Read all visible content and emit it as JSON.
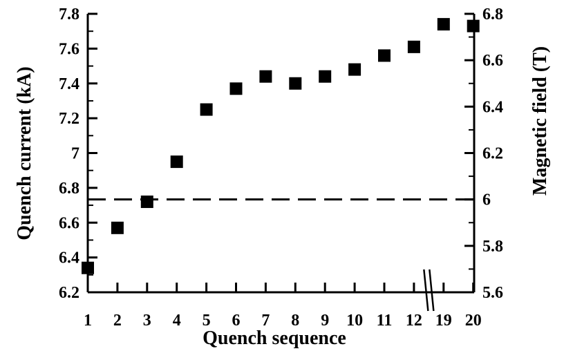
{
  "chart_data": {
    "type": "scatter",
    "title": "",
    "xlabel": "Quench sequence",
    "ylabel": "Quench current (kA)",
    "y2label": "Magnetic field (T)",
    "x_categories": [
      "1",
      "2",
      "3",
      "4",
      "5",
      "6",
      "7",
      "8",
      "9",
      "10",
      "11",
      "12",
      "19",
      "20"
    ],
    "x_axis_break": "between 12 and 19",
    "ylim": [
      6.2,
      7.8
    ],
    "y_ticks": [
      "6.2",
      "6.4",
      "6.6",
      "6.8",
      "7",
      "7.2",
      "7.4",
      "7.6",
      "7.8"
    ],
    "y2lim": [
      5.6,
      6.8
    ],
    "y2_ticks": [
      "5.6",
      "5.8",
      "6",
      "6.2",
      "6.4",
      "6.6",
      "6.8"
    ],
    "series": [
      {
        "marker": "filled-square",
        "color": "#000000",
        "x": [
          "1",
          "2",
          "3",
          "4",
          "5",
          "6",
          "7",
          "8",
          "9",
          "10",
          "11",
          "12",
          "19",
          "20"
        ],
        "values": [
          6.34,
          6.57,
          6.72,
          6.95,
          7.25,
          7.37,
          7.44,
          7.4,
          7.44,
          7.48,
          7.56,
          7.61,
          7.74,
          7.73
        ]
      }
    ],
    "reference_line": {
      "style": "dashed",
      "y2": 6.0
    },
    "grid": false,
    "legend": "none"
  }
}
